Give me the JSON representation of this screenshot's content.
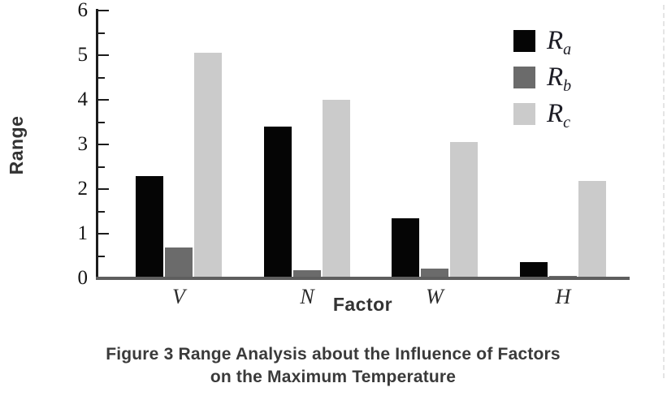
{
  "figure": {
    "caption_line1": "Figure 3 Range Analysis about the Influence of Factors",
    "caption_line2": "on the Maximum Temperature"
  },
  "chart_data": {
    "type": "bar",
    "title": "",
    "xlabel": "Factor",
    "ylabel": "Range",
    "categories": [
      "V",
      "N",
      "W",
      "H"
    ],
    "series": [
      {
        "name": "Ra",
        "label_base": "R",
        "label_sub": "a",
        "color": "#050505",
        "values": [
          2.3,
          3.4,
          1.35,
          0.37
        ]
      },
      {
        "name": "Rb",
        "label_base": "R",
        "label_sub": "b",
        "color": "#6b6b6b",
        "values": [
          0.7,
          0.18,
          0.22,
          0.06
        ]
      },
      {
        "name": "Rc",
        "label_base": "R",
        "label_sub": "c",
        "color": "#cbcbcb",
        "values": [
          5.05,
          4.0,
          3.05,
          2.18
        ]
      }
    ],
    "ylim": [
      0,
      6
    ],
    "yticks": [
      0,
      1,
      2,
      3,
      4,
      5,
      6
    ],
    "minor_tick_step": 0.5,
    "grid": false,
    "legend_position": "top-right"
  }
}
